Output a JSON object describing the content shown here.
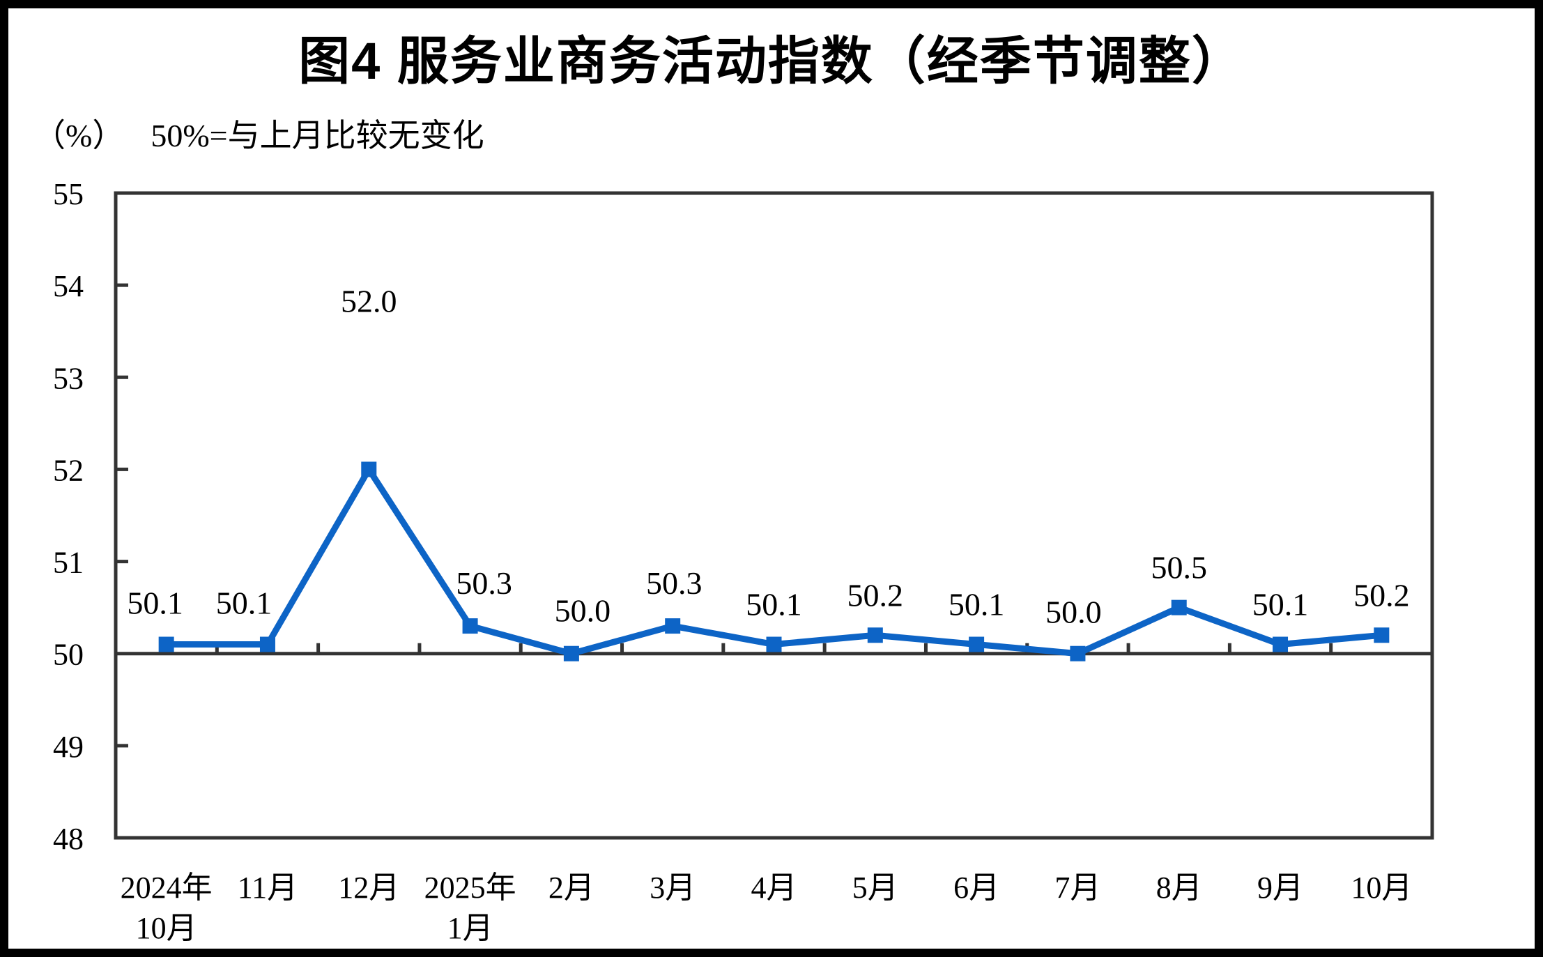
{
  "page": {
    "title": "图4 服务业商务活动指数（经季节调整）",
    "unit_label": "（%）",
    "baseline_note": "50%=与上月比较无变化"
  },
  "chart_data": {
    "type": "line",
    "title": "图4 服务业商务活动指数（经季节调整）",
    "unit": "%",
    "annotation": "50%=与上月比较无变化",
    "categories": [
      "2024年\n10月",
      "11月",
      "12月",
      "2025年\n1月",
      "2月",
      "3月",
      "4月",
      "5月",
      "6月",
      "7月",
      "8月",
      "9月",
      "10月"
    ],
    "series": [
      {
        "name": "服务业商务活动指数",
        "values": [
          50.1,
          50.1,
          52.0,
          50.3,
          50.0,
          50.3,
          50.1,
          50.2,
          50.1,
          50.0,
          50.5,
          50.1,
          50.2
        ]
      }
    ],
    "ylim": [
      48,
      55
    ],
    "ytick_step": 1,
    "baseline": 50,
    "grid": false,
    "legend_position": "none",
    "marker_shape": "square",
    "colors": {
      "line": "#0d64c6",
      "marker": "#0d64c6",
      "axis": "#333333",
      "text": "#000000"
    }
  }
}
